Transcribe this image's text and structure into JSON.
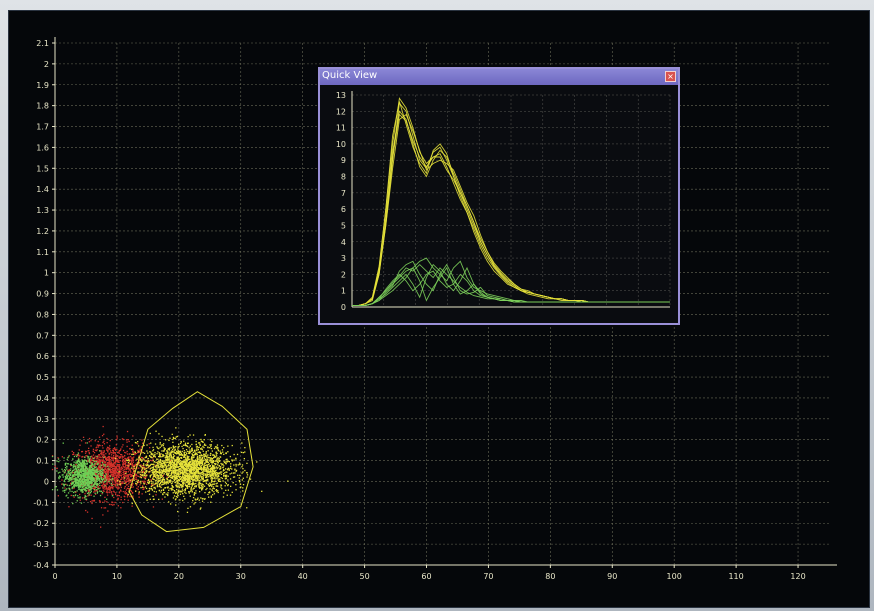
{
  "quick_view": {
    "title": "Quick View",
    "close_icon": "close-icon"
  },
  "colors": {
    "background": "#05070a",
    "grid": "#8a8a70",
    "axis": "#e8e6c8",
    "cluster_green": "#6fcf55",
    "cluster_red": "#d4322b",
    "cluster_yellow": "#e6e23a",
    "gate_outline": "#e6e23a",
    "window_border": "#9a90d8"
  },
  "chart_data": [
    {
      "type": "scatter",
      "title": "",
      "xlabel": "",
      "ylabel": "",
      "xlim": [
        0,
        125
      ],
      "ylim": [
        -0.4,
        2.1
      ],
      "x_ticks": [
        0,
        10,
        20,
        30,
        40,
        50,
        60,
        70,
        80,
        90,
        100,
        110,
        120
      ],
      "y_ticks": [
        -0.4,
        -0.3,
        -0.2,
        -0.1,
        0,
        0.1,
        0.2,
        0.3,
        0.4,
        0.5,
        0.6,
        0.7,
        0.8,
        0.9,
        1,
        1.1,
        1.2,
        1.3,
        1.4,
        1.5,
        1.6,
        1.7,
        1.8,
        1.9,
        2,
        2.1
      ],
      "grid": true,
      "clusters": [
        {
          "color": "red",
          "center_x": 9,
          "center_y": 0.05,
          "spread_x": 5.5,
          "spread_y": 0.12
        },
        {
          "color": "green",
          "center_x": 4.5,
          "center_y": 0.03,
          "spread_x": 3,
          "spread_y": 0.08
        },
        {
          "color": "yellow",
          "center_x": 21,
          "center_y": 0.06,
          "spread_x": 7,
          "spread_y": 0.11
        }
      ],
      "gate": {
        "shape": "closed polygon",
        "points": [
          [
            13,
            0.05
          ],
          [
            15,
            0.25
          ],
          [
            19,
            0.35
          ],
          [
            23,
            0.43
          ],
          [
            27,
            0.36
          ],
          [
            31,
            0.25
          ],
          [
            32,
            0.07
          ],
          [
            30,
            -0.12
          ],
          [
            24,
            -0.22
          ],
          [
            18,
            -0.24
          ],
          [
            14,
            -0.16
          ],
          [
            12,
            -0.05
          ]
        ]
      }
    },
    {
      "type": "line",
      "title": "Quick View",
      "x": [
        0,
        1,
        2,
        3,
        4,
        5,
        6,
        7,
        8,
        9,
        10,
        11,
        12,
        13,
        14,
        15,
        16,
        17,
        18,
        19,
        20,
        21,
        22,
        23,
        24,
        25,
        26,
        27,
        28,
        29,
        30,
        31,
        32,
        33,
        34,
        35,
        36,
        37,
        38,
        39,
        40,
        41,
        42,
        43,
        44,
        45,
        46,
        47
      ],
      "ylim": [
        0,
        13
      ],
      "y_ticks": [
        0,
        1,
        2,
        3,
        4,
        5,
        6,
        7,
        8,
        9,
        10,
        11,
        12,
        13
      ],
      "grid": true,
      "series": [
        {
          "color": "yellow",
          "values": [
            0.1,
            0.1,
            0.2,
            0.5,
            2,
            5,
            9,
            12.5,
            12,
            10.5,
            9,
            8.5,
            9.5,
            9.8,
            9,
            8,
            7,
            6,
            5,
            4,
            3.2,
            2.5,
            2,
            1.6,
            1.3,
            1,
            0.9,
            0.8,
            0.7,
            0.6,
            0.5,
            0.5,
            0.4,
            0.4,
            0.4,
            0.3,
            0.3,
            0.3,
            0.3,
            0.3,
            0.3,
            0.3,
            0.3,
            0.3,
            0.3,
            0.3,
            0.3,
            0.3
          ]
        },
        {
          "color": "yellow",
          "values": [
            0.1,
            0.1,
            0.2,
            0.6,
            2.5,
            6,
            10,
            12.8,
            12.2,
            11,
            9.5,
            8.8,
            9.2,
            9.4,
            8.6,
            7.6,
            6.6,
            5.8,
            4.8,
            3.8,
            3,
            2.4,
            1.9,
            1.5,
            1.2,
            1,
            0.9,
            0.8,
            0.7,
            0.6,
            0.5,
            0.5,
            0.4,
            0.4,
            0.4,
            0.3,
            0.3,
            0.3,
            0.3,
            0.3,
            0.3,
            0.3,
            0.3,
            0.3,
            0.3,
            0.3,
            0.3,
            0.3
          ]
        },
        {
          "color": "yellow",
          "values": [
            0.1,
            0.1,
            0.2,
            0.4,
            2,
            5.5,
            9.5,
            12,
            11.5,
            10,
            8.6,
            8,
            9,
            9.6,
            9.2,
            8.2,
            7.2,
            6.2,
            5.2,
            4.2,
            3.4,
            2.6,
            2.1,
            1.7,
            1.4,
            1.1,
            0.9,
            0.8,
            0.7,
            0.6,
            0.5,
            0.5,
            0.4,
            0.4,
            0.4,
            0.3,
            0.3,
            0.3,
            0.3,
            0.3,
            0.3,
            0.3,
            0.3,
            0.3,
            0.3,
            0.3,
            0.3,
            0.3
          ]
        },
        {
          "color": "yellow",
          "values": [
            0.1,
            0.1,
            0.2,
            0.5,
            2.2,
            5,
            8.5,
            11.5,
            11.8,
            10.8,
            9.6,
            8.4,
            8.8,
            9,
            8.8,
            8.4,
            7.4,
            6.4,
            5.6,
            4.4,
            3.4,
            2.7,
            2.2,
            1.8,
            1.4,
            1.1,
            1,
            0.8,
            0.7,
            0.6,
            0.5,
            0.5,
            0.4,
            0.4,
            0.4,
            0.3,
            0.3,
            0.3,
            0.3,
            0.3,
            0.3,
            0.3,
            0.3,
            0.3,
            0.3,
            0.3,
            0.3,
            0.3
          ]
        },
        {
          "color": "yellow",
          "values": [
            0.1,
            0.1,
            0.2,
            0.5,
            2.4,
            6,
            10.5,
            12.6,
            11.2,
            9.8,
            8.8,
            8.2,
            9.6,
            10,
            9.4,
            8,
            6.8,
            5.8,
            4.6,
            3.6,
            2.8,
            2.2,
            1.8,
            1.4,
            1.2,
            1,
            0.8,
            0.7,
            0.6,
            0.5,
            0.5,
            0.4,
            0.4,
            0.4,
            0.3,
            0.3,
            0.3,
            0.3,
            0.3,
            0.3,
            0.3,
            0.3,
            0.3,
            0.3,
            0.3,
            0.3,
            0.3,
            0.3
          ]
        },
        {
          "color": "yellow",
          "values": [
            0.1,
            0.1,
            0.2,
            0.5,
            2.1,
            5.2,
            9.2,
            11.8,
            11.4,
            10.2,
            9.2,
            8.6,
            9.2,
            9.2,
            8.4,
            7.8,
            7,
            6.2,
            5.2,
            4,
            3.2,
            2.5,
            2,
            1.6,
            1.3,
            1,
            0.9,
            0.8,
            0.7,
            0.6,
            0.5,
            0.5,
            0.4,
            0.4,
            0.4,
            0.3,
            0.3,
            0.3,
            0.3,
            0.3,
            0.3,
            0.3,
            0.3,
            0.3,
            0.3,
            0.3,
            0.3,
            0.3
          ]
        },
        {
          "color": "green",
          "values": [
            0.1,
            0.1,
            0.1,
            0.2,
            0.6,
            1,
            1.4,
            1.8,
            2.2,
            2.4,
            2.8,
            3,
            2.4,
            2,
            1.6,
            2.4,
            2.8,
            1.8,
            1.2,
            1,
            0.8,
            0.7,
            0.6,
            0.5,
            0.4,
            0.4,
            0.3,
            0.3,
            0.3,
            0.3,
            0.3,
            0.3,
            0.3,
            0.3,
            0.3,
            0.3,
            0.3,
            0.3,
            0.3,
            0.3,
            0.3,
            0.3,
            0.3,
            0.3,
            0.3,
            0.3,
            0.3,
            0.3
          ]
        },
        {
          "color": "green",
          "values": [
            0.1,
            0.1,
            0.1,
            0.2,
            0.5,
            0.8,
            1.2,
            1.6,
            2,
            1.4,
            0.6,
            1.8,
            2.6,
            2.2,
            1.4,
            1,
            1.6,
            2.4,
            1.4,
            0.8,
            0.6,
            0.5,
            0.5,
            0.4,
            0.4,
            0.3,
            0.3,
            0.3,
            0.3,
            0.3,
            0.3,
            0.3,
            0.3,
            0.3,
            0.3,
            0.3,
            0.3,
            0.3,
            0.3,
            0.3,
            0.3,
            0.3,
            0.3,
            0.3,
            0.3,
            0.3,
            0.3,
            0.3
          ]
        },
        {
          "color": "green",
          "values": [
            0.1,
            0.1,
            0.1,
            0.2,
            0.4,
            0.9,
            1.3,
            2.2,
            2.6,
            2.8,
            2,
            1.4,
            1,
            2,
            2.6,
            1.8,
            1,
            0.8,
            0.9,
            1.2,
            0.7,
            0.6,
            0.5,
            0.4,
            0.4,
            0.3,
            0.3,
            0.3,
            0.3,
            0.3,
            0.3,
            0.3,
            0.3,
            0.3,
            0.3,
            0.3,
            0.3,
            0.3,
            0.3,
            0.3,
            0.3,
            0.3,
            0.3,
            0.3,
            0.3,
            0.3,
            0.3,
            0.3
          ]
        },
        {
          "color": "green",
          "values": [
            0.1,
            0.1,
            0.1,
            0.2,
            0.5,
            1.1,
            1.6,
            2,
            1.6,
            1,
            1.4,
            2,
            2.2,
            1.6,
            1.2,
            1.4,
            2,
            1.6,
            1,
            0.7,
            0.6,
            0.5,
            0.4,
            0.4,
            0.3,
            0.3,
            0.3,
            0.3,
            0.3,
            0.3,
            0.3,
            0.3,
            0.3,
            0.3,
            0.3,
            0.3,
            0.3,
            0.3,
            0.3,
            0.3,
            0.3,
            0.3,
            0.3,
            0.3,
            0.3,
            0.3,
            0.3,
            0.3
          ]
        },
        {
          "color": "green",
          "values": [
            0.1,
            0.1,
            0.1,
            0.2,
            0.4,
            0.7,
            1,
            1.4,
            1.8,
            2.4,
            1.6,
            0.4,
            1.2,
            1.8,
            2.4,
            1.4,
            0.8,
            1,
            1.4,
            0.9,
            0.6,
            0.5,
            0.4,
            0.4,
            0.3,
            0.3,
            0.3,
            0.3,
            0.3,
            0.3,
            0.3,
            0.3,
            0.3,
            0.3,
            0.3,
            0.3,
            0.3,
            0.3,
            0.3,
            0.3,
            0.3,
            0.3,
            0.3,
            0.3,
            0.3,
            0.3,
            0.3,
            0.3
          ]
        },
        {
          "color": "green",
          "values": [
            0.1,
            0.1,
            0.1,
            0.2,
            0.6,
            1,
            1.5,
            1.9,
            2.4,
            2.2,
            2.6,
            2.2,
            1.8,
            2.4,
            2,
            1.6,
            1.2,
            0.9,
            0.7,
            0.6,
            0.5,
            0.5,
            0.4,
            0.4,
            0.3,
            0.3,
            0.3,
            0.3,
            0.3,
            0.3,
            0.3,
            0.3,
            0.3,
            0.3,
            0.3,
            0.3,
            0.3,
            0.3,
            0.3,
            0.3,
            0.3,
            0.3,
            0.3,
            0.3,
            0.3,
            0.3,
            0.3,
            0.3
          ]
        }
      ]
    }
  ]
}
